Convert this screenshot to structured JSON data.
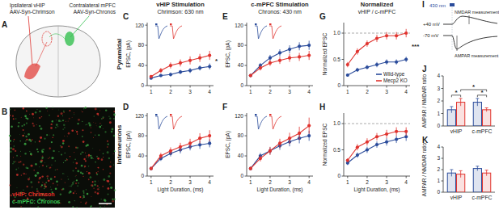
{
  "chart_data": [
    {
      "panel": "C",
      "type": "line",
      "ylabel": "EPSC, (pA)",
      "x": [
        1,
        1.5,
        2,
        2.5,
        3,
        3.5,
        4
      ],
      "xlim": [
        0.8,
        4.2
      ],
      "xticks": [
        1,
        2,
        3,
        4
      ],
      "ylim": [
        0,
        125
      ],
      "yticks": [
        0,
        40,
        80,
        120
      ],
      "series": [
        {
          "name": "Wild-type",
          "color": "#2b4c9b",
          "values": [
            15,
            20,
            22,
            27,
            30,
            35,
            38
          ],
          "errors": [
            3,
            3,
            4,
            4,
            5,
            5,
            6
          ]
        },
        {
          "name": "Mecp2 KO",
          "color": "#e0342f",
          "values": [
            18,
            30,
            40,
            45,
            50,
            55,
            60
          ],
          "errors": [
            3,
            5,
            6,
            7,
            8,
            8,
            9
          ]
        }
      ],
      "annotations": [
        {
          "text": "*"
        }
      ]
    },
    {
      "panel": "D",
      "type": "line",
      "ylabel": "EPSC, (pA)",
      "xlabel": "Light Duration, (ms)",
      "x": [
        1,
        1.5,
        2,
        2.5,
        3,
        3.5,
        4
      ],
      "xlim": [
        0.8,
        4.2
      ],
      "xticks": [
        1,
        2,
        3,
        4
      ],
      "ylim": [
        0,
        125
      ],
      "yticks": [
        0,
        40,
        80,
        120
      ],
      "series": [
        {
          "name": "Wild-type",
          "color": "#2b4c9b",
          "values": [
            15,
            35,
            45,
            52,
            58,
            62,
            65
          ],
          "errors": [
            3,
            5,
            6,
            7,
            7,
            8,
            8
          ]
        },
        {
          "name": "Mecp2 KO",
          "color": "#e0342f",
          "values": [
            15,
            40,
            50,
            58,
            65,
            75,
            80
          ],
          "errors": [
            3,
            6,
            7,
            8,
            9,
            10,
            11
          ]
        }
      ]
    },
    {
      "panel": "E",
      "type": "line",
      "ylabel": "EPSC, (pA)",
      "x": [
        1,
        1.5,
        2,
        2.5,
        3,
        3.5,
        4
      ],
      "xlim": [
        0.8,
        4.2
      ],
      "xticks": [
        1,
        2,
        3,
        4
      ],
      "ylim": [
        0,
        125
      ],
      "yticks": [
        0,
        40,
        80,
        120
      ],
      "series": [
        {
          "name": "Wild-type",
          "color": "#2b4c9b",
          "values": [
            20,
            40,
            55,
            65,
            72,
            78,
            80
          ],
          "errors": [
            3,
            5,
            6,
            7,
            8,
            8,
            9
          ]
        },
        {
          "name": "Mecp2 KO",
          "color": "#e0342f",
          "values": [
            20,
            35,
            45,
            50,
            55,
            57,
            60
          ],
          "errors": [
            3,
            5,
            6,
            7,
            8,
            8,
            9
          ]
        }
      ]
    },
    {
      "panel": "F",
      "type": "line",
      "ylabel": "EPSC, (pA)",
      "xlabel": "Light Duration, (ms)",
      "x": [
        1,
        1.5,
        2,
        2.5,
        3,
        3.5,
        4
      ],
      "xlim": [
        0.8,
        4.2
      ],
      "xticks": [
        1,
        2,
        3,
        4
      ],
      "ylim": [
        0,
        125
      ],
      "yticks": [
        0,
        40,
        80,
        120
      ],
      "series": [
        {
          "name": "Wild-type",
          "color": "#2b4c9b",
          "values": [
            15,
            40,
            50,
            60,
            68,
            75,
            80
          ],
          "errors": [
            3,
            6,
            7,
            8,
            9,
            10,
            10
          ]
        },
        {
          "name": "Mecp2 KO",
          "color": "#e0342f",
          "values": [
            15,
            35,
            50,
            65,
            75,
            85,
            100
          ],
          "errors": [
            3,
            6,
            8,
            9,
            11,
            13,
            16
          ]
        }
      ]
    },
    {
      "panel": "G",
      "type": "line",
      "ylabel": "Normalized EPSC",
      "x": [
        1,
        1.5,
        2,
        2.5,
        3,
        3.5,
        4
      ],
      "xlim": [
        0.8,
        4.2
      ],
      "xticks": [
        1,
        2,
        3,
        4
      ],
      "ylim": [
        0,
        1.2
      ],
      "yticks": [
        0,
        0.5,
        {
          "value": 1,
          "label": "1.0"
        }
      ],
      "reference": 1,
      "legend": "lower right",
      "series": [
        {
          "name": "Wild-type",
          "color": "#2b4c9b",
          "values": [
            0.2,
            0.3,
            0.35,
            0.4,
            0.45,
            0.45,
            0.5
          ],
          "errors": [
            0.03,
            0.04,
            0.04,
            0.05,
            0.05,
            0.05,
            0.05
          ]
        },
        {
          "name": "Mecp2 KO",
          "color": "#e0342f",
          "values": [
            0.4,
            0.65,
            0.8,
            0.9,
            0.95,
            0.95,
            1.0
          ],
          "errors": [
            0.05,
            0.06,
            0.06,
            0.07,
            0.07,
            0.07,
            0.08
          ]
        }
      ],
      "annotations": [
        {
          "text": "***"
        }
      ]
    },
    {
      "panel": "H",
      "type": "line",
      "ylabel": "Normalized EPSC",
      "xlabel": "Light Duration, (ms)",
      "x": [
        1,
        1.5,
        2,
        2.5,
        3,
        3.5,
        4
      ],
      "xlim": [
        0.8,
        4.2
      ],
      "xticks": [
        1,
        2,
        3,
        4
      ],
      "ylim": [
        0,
        1.2
      ],
      "yticks": [
        0,
        0.5,
        {
          "value": 1,
          "label": "1.0"
        }
      ],
      "reference": 1,
      "series": [
        {
          "name": "Wild-type",
          "color": "#2b4c9b",
          "values": [
            0.25,
            0.4,
            0.5,
            0.6,
            0.65,
            0.7,
            0.75
          ],
          "errors": [
            0.04,
            0.05,
            0.06,
            0.06,
            0.07,
            0.07,
            0.08
          ]
        },
        {
          "name": "Mecp2 KO",
          "color": "#e0342f",
          "values": [
            0.3,
            0.55,
            0.65,
            0.75,
            0.8,
            0.85,
            0.85
          ],
          "errors": [
            0.04,
            0.06,
            0.07,
            0.07,
            0.08,
            0.08,
            0.08
          ]
        }
      ]
    },
    {
      "panel": "J",
      "type": "bar",
      "ylabel": "AMPAR / NMDAR ratio",
      "categories": [
        "vHIP",
        "c-mPFC"
      ],
      "ylim": [
        0,
        4
      ],
      "yticks": [
        0,
        1,
        2,
        3,
        4
      ],
      "series": [
        {
          "name": "Wild-type",
          "color": "#2b4c9b",
          "values": [
            1.3,
            1.9
          ],
          "errors": [
            0.25,
            0.3
          ]
        },
        {
          "name": "Mecp2 KO",
          "color": "#e0342f",
          "values": [
            1.9,
            1.3
          ],
          "errors": [
            0.3,
            0.15
          ]
        }
      ],
      "annotations": [
        {
          "text": "*",
          "pair": [
            [
              0,
              0
            ],
            [
              0,
              1
            ]
          ]
        },
        {
          "text": "*",
          "pair": [
            [
              0,
              1
            ],
            [
              1,
              1
            ]
          ]
        },
        {
          "text": "*",
          "pair": [
            [
              1,
              0
            ],
            [
              1,
              1
            ]
          ]
        }
      ]
    },
    {
      "panel": "K",
      "type": "bar",
      "ylabel": "AMPAR / NMDAR ratio",
      "categories": [
        "vHIP",
        "c-mPFC"
      ],
      "ylim": [
        0,
        4
      ],
      "yticks": [
        0,
        1,
        2,
        3,
        4
      ],
      "series": [
        {
          "name": "Wild-type",
          "color": "#2b4c9b",
          "values": [
            1.7,
            2.1
          ],
          "errors": [
            0.3,
            0.2
          ]
        },
        {
          "name": "Mecp2 KO",
          "color": "#e0342f",
          "values": [
            1.6,
            1.7
          ],
          "errors": [
            0.3,
            0.25
          ]
        }
      ]
    }
  ],
  "figure": {
    "column_headers": [
      {
        "title": "vHIP Stimulation",
        "subtitle": "Chrimson: 630 nm"
      },
      {
        "title": "c-mPFC Stimulation",
        "subtitle": "Chronos: 430 nm"
      },
      {
        "title": "Normalized",
        "subtitle": "vHIP / c-mPFC"
      }
    ],
    "row_labels": [
      "Pyramidal",
      "Interneurons"
    ],
    "panel_a": {
      "label": "A",
      "left_text": [
        "Ipsilateral vHIP",
        "AAV-Syn-Chrimson"
      ],
      "right_text": [
        "Contralateral mPFC",
        "AAV-Syn-Chronos"
      ]
    },
    "panel_b": {
      "label": "B",
      "labels": [
        {
          "text": "vHIP: Chrimson",
          "color": "#e0302a"
        },
        {
          "text": "c-mPFC: Chronos",
          "color": "#35c050"
        }
      ]
    },
    "panel_i": {
      "label": "I",
      "stim": "430 nm",
      "upper": "+40 mV",
      "lower": "-70 mV",
      "nmdar": "NMDAR measurement",
      "ampar": "AMPAR measurement"
    }
  }
}
